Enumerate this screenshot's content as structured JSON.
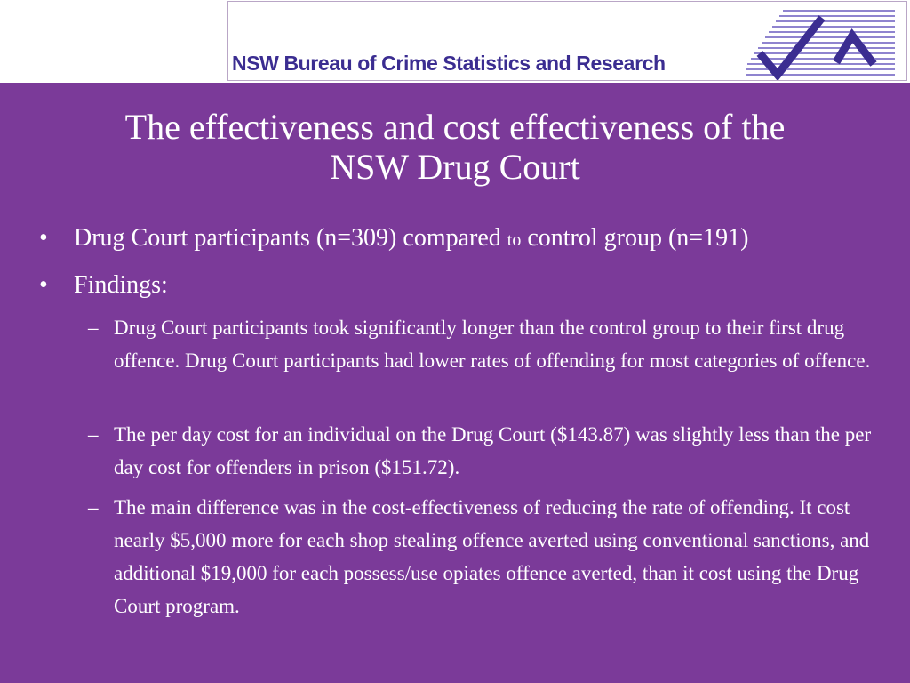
{
  "header": {
    "organization": "NSW Bureau of Crime Statistics and Research"
  },
  "slide": {
    "title_line1": "The effectiveness and cost effectiveness of the",
    "title_line2": "NSW Drug Court"
  },
  "bullets": [
    {
      "marker": "•",
      "text_before": "Drug Court participants (n=309) compared ",
      "text_small": "to",
      "text_after": " control group (n=191)"
    },
    {
      "marker": "•",
      "text": "Findings:"
    }
  ],
  "sub_bullets": [
    {
      "marker": "–",
      "text": "Drug Court participants took significantly longer than the control group to their first drug offence. Drug Court participants had lower rates of offending for most categories of offence."
    },
    {
      "marker": "–",
      "text": "The per day cost for an individual on the Drug Court ($143.87) was slightly less than the per day cost for offenders in prison ($151.72)."
    },
    {
      "marker": "–",
      "text": "The main difference was in the cost-effectiveness of reducing the rate of offending. It cost nearly $5,000 more for each shop stealing offence averted using conventional sanctions, and additional $19,000 for each possess/use opiates offence averted, than it cost using the Drug Court program."
    }
  ],
  "colors": {
    "background": "#7B3A99",
    "banner_text": "#3b2d91",
    "logo_stripes": "#8f84cf",
    "logo_check": "#3b2d91"
  },
  "icons": {
    "logo": "bocsar-logo-icon"
  }
}
